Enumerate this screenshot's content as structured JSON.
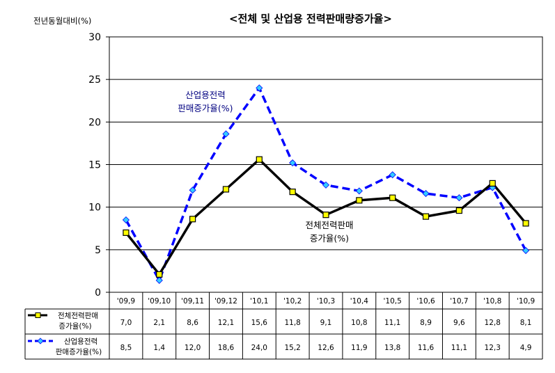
{
  "chart_data": {
    "type": "line",
    "title": "<전체 및 산업용 전력판매량증가율>",
    "ylabel": "전년동월대비(%)",
    "xlabel": "",
    "ylim": [
      0,
      30
    ],
    "yticks": [
      0,
      5,
      10,
      15,
      20,
      25,
      30
    ],
    "grid": true,
    "categories": [
      "'09,9",
      "'09,10",
      "'09,11",
      "'09,12",
      "'10,1",
      "'10,2",
      "'10,3",
      "'10,4",
      "'10,5",
      "'10,6",
      "'10,7",
      "'10,8",
      "'10,9"
    ],
    "series": [
      {
        "name": "전체전력판매 증가율(%)",
        "name_lines": [
          "전체전력판매",
          "증가율(%)"
        ],
        "annotation_lines": [
          "전체전력판매",
          "증가율(%)"
        ],
        "color": "#000000",
        "marker_color": "#ffff00",
        "values": [
          7.0,
          2.1,
          8.6,
          12.1,
          15.6,
          11.8,
          9.1,
          10.8,
          11.1,
          8.9,
          9.6,
          12.8,
          8.1
        ],
        "labels": [
          "7,0",
          "2,1",
          "8,6",
          "12,1",
          "15,6",
          "11,8",
          "9,1",
          "10,8",
          "11,1",
          "8,9",
          "9,6",
          "12,8",
          "8,1"
        ]
      },
      {
        "name": "산업용전력 판매증가율(%)",
        "name_lines": [
          "산업용전력",
          "판매증가율(%)"
        ],
        "annotation_lines": [
          "산업용전력",
          "판매증가율(%)"
        ],
        "color": "#0000ff",
        "marker_color": "#33ccff",
        "values": [
          8.5,
          1.4,
          12.0,
          18.6,
          24.0,
          15.2,
          12.6,
          11.9,
          13.8,
          11.6,
          11.1,
          12.3,
          4.9
        ],
        "labels": [
          "8,5",
          "1,4",
          "12,0",
          "18,6",
          "24,0",
          "15,2",
          "12,6",
          "11,9",
          "13,8",
          "11,6",
          "11,1",
          "12,3",
          "4,9"
        ]
      }
    ]
  }
}
